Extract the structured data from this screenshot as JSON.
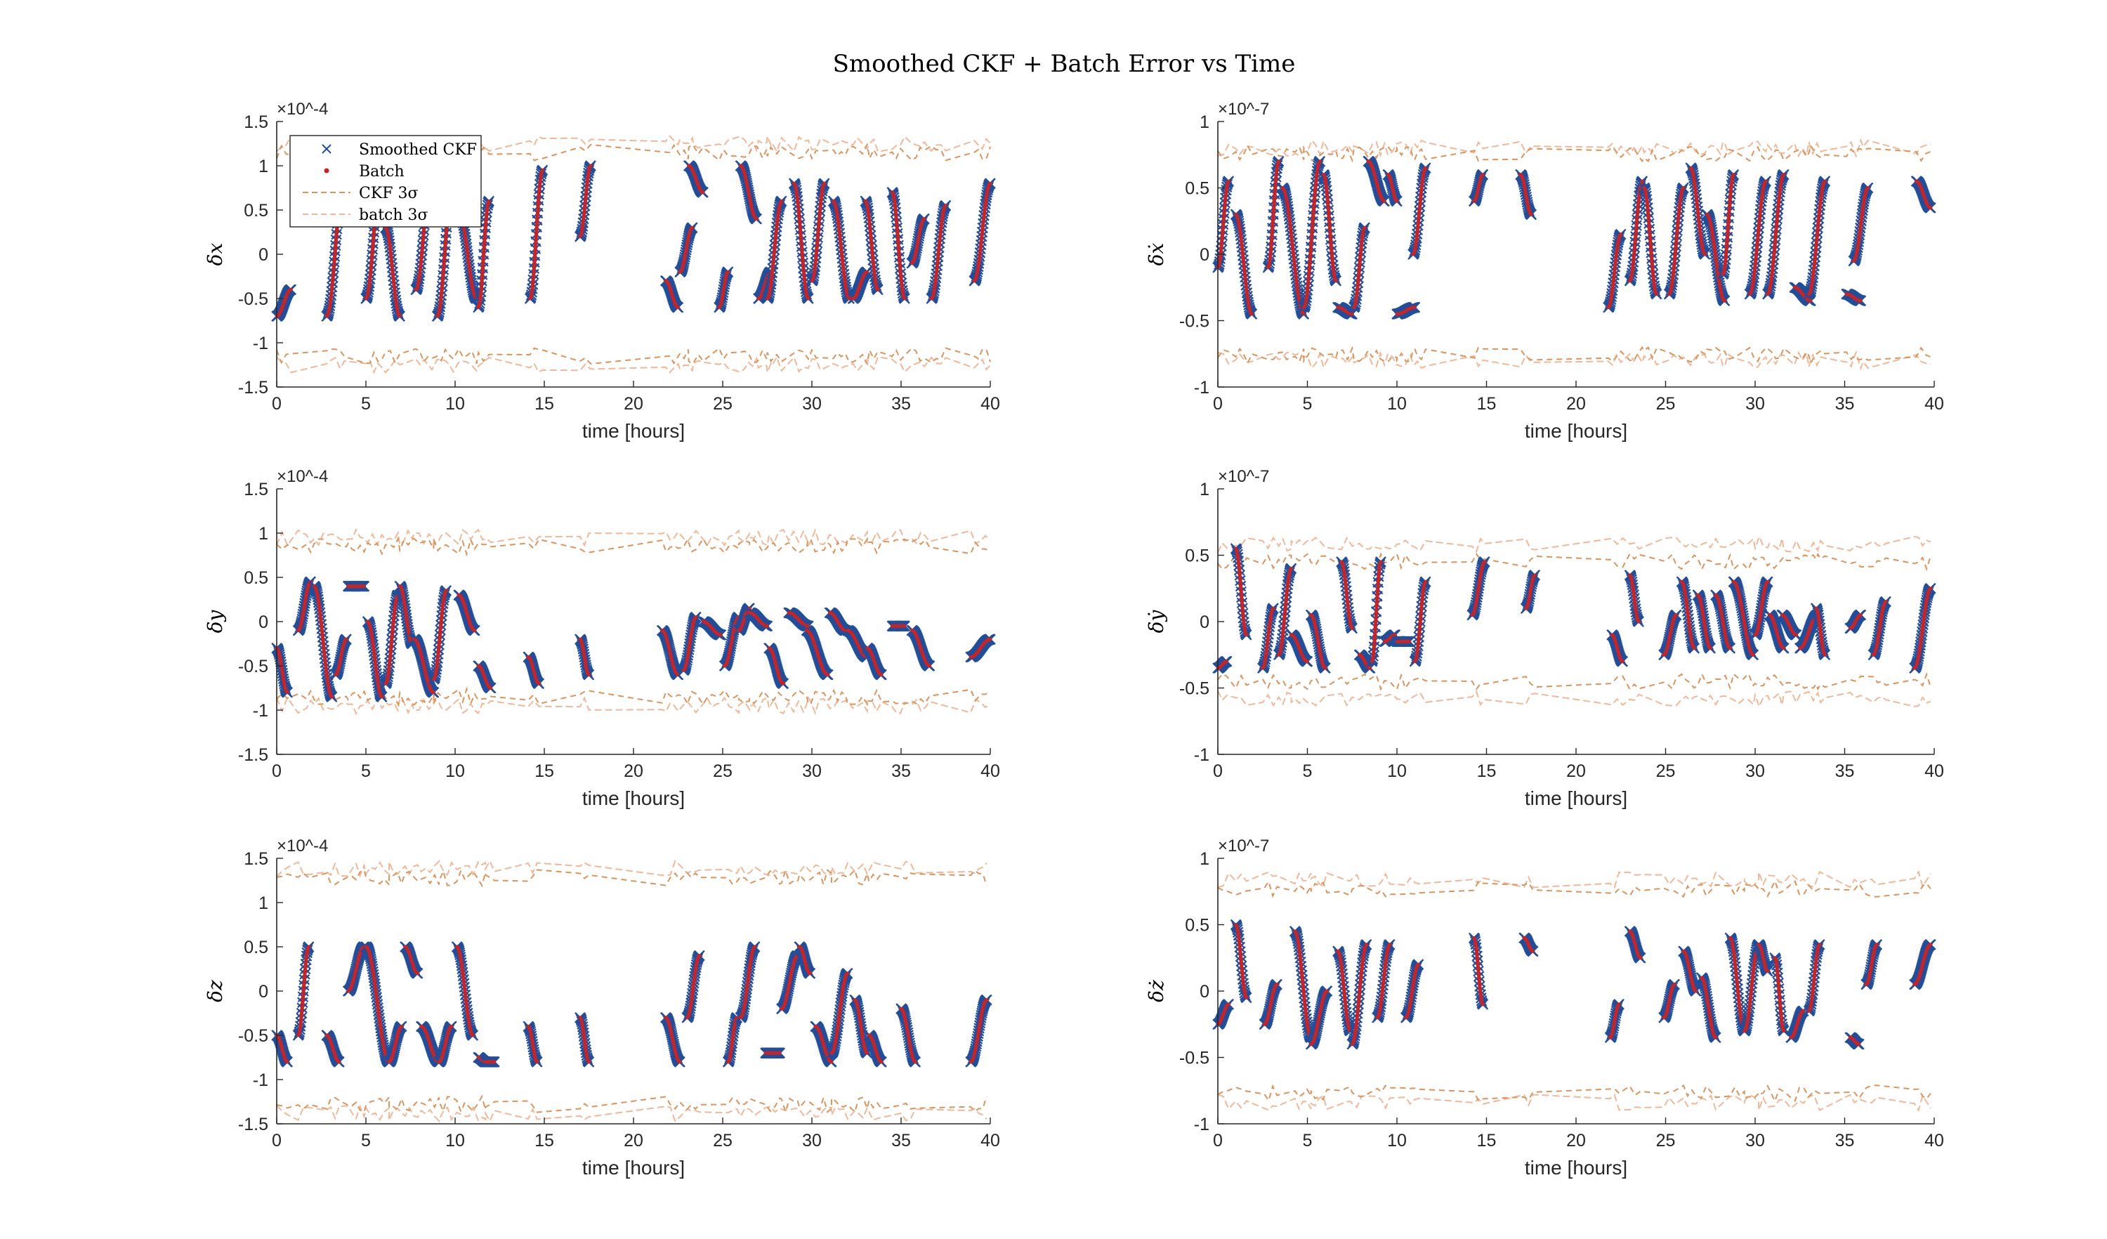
{
  "figure": {
    "title": "Smoothed CKF + Batch Error vs Time",
    "colors": {
      "ckf_marker": "#1f4e9c",
      "batch_marker": "#cc2222",
      "ckf_sigma": "#d9955c",
      "batch_sigma": "#f0b898",
      "axis": "#262626"
    }
  },
  "legend": {
    "placement": "top-left of first panel",
    "entries": [
      "Smoothed CKF",
      "Batch",
      "CKF 3σ",
      "batch 3σ"
    ]
  },
  "chart_data": [
    {
      "type": "scatter",
      "ylabel": "δx",
      "xlabel": "time [hours]",
      "exponent": "×10^-4",
      "xlim": [
        0,
        40
      ],
      "ylim": [
        -1.5,
        1.5
      ],
      "xticks": [
        "0",
        "5",
        "10",
        "15",
        "20",
        "25",
        "30",
        "35",
        "40"
      ],
      "yticks": [
        "-1.5",
        "-1",
        "-0.5",
        "0",
        "0.5",
        "1",
        "1.5"
      ],
      "sigma_ckf": 1.15,
      "sigma_batch": 1.25,
      "segments": [
        [
          0,
          0.8,
          -0.7,
          -0.4
        ],
        [
          2.8,
          3.8,
          -0.7,
          0.9
        ],
        [
          5,
          5.9,
          -0.5,
          1.0
        ],
        [
          6.1,
          6.9,
          0.3,
          -0.7
        ],
        [
          7.8,
          8.7,
          -0.4,
          0.95
        ],
        [
          9,
          9.9,
          -0.7,
          0.9
        ],
        [
          10.2,
          11.2,
          0.5,
          -0.5
        ],
        [
          11.3,
          11.9,
          -0.6,
          0.6
        ],
        [
          14.2,
          14.9,
          -0.5,
          0.95
        ],
        [
          17,
          17.6,
          0.2,
          1.0
        ],
        [
          21.8,
          22.5,
          -0.3,
          -0.6
        ],
        [
          22.6,
          23.3,
          -0.2,
          0.3
        ],
        [
          23.1,
          23.9,
          1.0,
          0.7
        ],
        [
          24.8,
          25.3,
          -0.6,
          -0.2
        ],
        [
          26,
          26.9,
          1.0,
          0.4
        ],
        [
          27,
          27.7,
          -0.5,
          -0.2
        ],
        [
          27.5,
          28.3,
          -0.5,
          0.6
        ],
        [
          29,
          29.8,
          0.8,
          -0.5
        ],
        [
          30,
          30.7,
          -0.3,
          0.8
        ],
        [
          31.2,
          32.1,
          0.6,
          -0.5
        ],
        [
          32.3,
          33.1,
          -0.5,
          -0.2
        ],
        [
          33,
          33.7,
          0.6,
          -0.4
        ],
        [
          34.5,
          35.2,
          0.7,
          -0.5
        ],
        [
          35.6,
          36.3,
          -0.1,
          0.4
        ],
        [
          36.7,
          37.5,
          -0.5,
          0.55
        ],
        [
          39.1,
          40,
          -0.3,
          0.8
        ]
      ]
    },
    {
      "type": "scatter",
      "ylabel": "δẋ",
      "xlabel": "time [hours]",
      "exponent": "×10^-7",
      "xlim": [
        0,
        40
      ],
      "ylim": [
        -1,
        1
      ],
      "xticks": [
        "0",
        "5",
        "10",
        "15",
        "20",
        "25",
        "30",
        "35",
        "40"
      ],
      "yticks": [
        "-1",
        "-0.5",
        "0",
        "0.5",
        "1"
      ],
      "sigma_ckf": 0.76,
      "sigma_batch": 0.8,
      "segments": [
        [
          0,
          0.6,
          -0.1,
          0.55
        ],
        [
          1,
          1.9,
          0.3,
          -0.45
        ],
        [
          2.8,
          3.4,
          -0.1,
          0.7
        ],
        [
          3.6,
          4.8,
          0.5,
          -0.45
        ],
        [
          4.8,
          5.7,
          -0.4,
          0.7
        ],
        [
          5.9,
          6.6,
          0.6,
          -0.2
        ],
        [
          6.7,
          7.5,
          -0.4,
          -0.45
        ],
        [
          7.6,
          8.2,
          -0.4,
          0.2
        ],
        [
          8.4,
          9.3,
          0.7,
          0.4
        ],
        [
          9.5,
          10,
          0.6,
          0.4
        ],
        [
          10,
          11,
          -0.45,
          -0.4
        ],
        [
          10.9,
          11.6,
          0.0,
          0.65
        ],
        [
          14.3,
          14.8,
          0.4,
          0.6
        ],
        [
          16.9,
          17.5,
          0.6,
          0.3
        ],
        [
          21.8,
          22.5,
          -0.4,
          0.15
        ],
        [
          23,
          23.7,
          -0.2,
          0.55
        ],
        [
          23.8,
          24.5,
          0.5,
          -0.3
        ],
        [
          25.2,
          26,
          -0.3,
          0.5
        ],
        [
          26.4,
          27.2,
          0.65,
          0.0
        ],
        [
          27.3,
          28.3,
          0.3,
          -0.35
        ],
        [
          28.2,
          28.8,
          -0.15,
          0.6
        ],
        [
          29.7,
          30.6,
          -0.3,
          0.55
        ],
        [
          30.7,
          31.6,
          -0.3,
          0.6
        ],
        [
          32.2,
          33.1,
          -0.25,
          -0.35
        ],
        [
          33,
          33.9,
          -0.3,
          0.55
        ],
        [
          35.1,
          35.9,
          -0.3,
          -0.35
        ],
        [
          35.5,
          36.3,
          -0.05,
          0.5
        ],
        [
          39,
          39.8,
          0.55,
          0.35
        ]
      ]
    },
    {
      "type": "scatter",
      "ylabel": "δy",
      "xlabel": "time [hours]",
      "exponent": "×10^-4",
      "xlim": [
        0,
        40
      ],
      "ylim": [
        -1.5,
        1.5
      ],
      "xticks": [
        "0",
        "5",
        "10",
        "15",
        "20",
        "25",
        "30",
        "35",
        "40"
      ],
      "yticks": [
        "-1.5",
        "-1",
        "-0.5",
        "0",
        "0.5",
        "1",
        "1.5"
      ],
      "sigma_ckf": 0.85,
      "sigma_batch": 0.95,
      "segments": [
        [
          0,
          0.6,
          -0.3,
          -0.8
        ],
        [
          1.2,
          1.9,
          -0.1,
          0.45
        ],
        [
          2.1,
          3.1,
          0.4,
          -0.85
        ],
        [
          3.3,
          3.9,
          -0.6,
          -0.2
        ],
        [
          4,
          4.9,
          0.4,
          0.4
        ],
        [
          5.1,
          5.9,
          0.0,
          -0.85
        ],
        [
          6.1,
          6.8,
          -0.7,
          0.3
        ],
        [
          6.9,
          7.6,
          0.4,
          -0.25
        ],
        [
          7.7,
          8.8,
          -0.2,
          -0.8
        ],
        [
          8.8,
          9.5,
          -0.65,
          0.35
        ],
        [
          10.2,
          11.1,
          0.3,
          -0.1
        ],
        [
          11.3,
          12,
          -0.5,
          -0.75
        ],
        [
          14.1,
          14.7,
          -0.4,
          -0.7
        ],
        [
          17,
          17.5,
          -0.2,
          -0.6
        ],
        [
          21.6,
          22.5,
          -0.1,
          -0.6
        ],
        [
          22.8,
          23.5,
          -0.55,
          0.05
        ],
        [
          23.9,
          24.9,
          0.0,
          -0.15
        ],
        [
          25.1,
          25.9,
          -0.5,
          0.05
        ],
        [
          25.9,
          26.5,
          -0.1,
          0.15
        ],
        [
          26.5,
          27.5,
          0.1,
          -0.05
        ],
        [
          27.6,
          28.4,
          -0.3,
          -0.7
        ],
        [
          28.7,
          29.8,
          0.1,
          -0.05
        ],
        [
          29.7,
          30.9,
          -0.1,
          -0.6
        ],
        [
          31,
          31.9,
          0.1,
          -0.1
        ],
        [
          32,
          33.1,
          -0.1,
          -0.4
        ],
        [
          33.1,
          33.9,
          -0.3,
          -0.6
        ],
        [
          34.5,
          35.2,
          -0.05,
          -0.05
        ],
        [
          35.6,
          36.6,
          -0.1,
          -0.5
        ],
        [
          38.9,
          40,
          -0.4,
          -0.2
        ]
      ]
    },
    {
      "type": "scatter",
      "ylabel": "δẏ",
      "xlabel": "time [hours]",
      "exponent": "×10^-7",
      "xlim": [
        0,
        40
      ],
      "ylim": [
        -1,
        1
      ],
      "xticks": [
        "0",
        "5",
        "10",
        "15",
        "20",
        "25",
        "30",
        "35",
        "40"
      ],
      "yticks": [
        "-1",
        "-0.5",
        "0",
        "0.5",
        "1"
      ],
      "sigma_ckf": 0.45,
      "sigma_batch": 0.58,
      "segments": [
        [
          0,
          0.5,
          -0.35,
          -0.3
        ],
        [
          1,
          1.6,
          0.55,
          -0.1
        ],
        [
          2.5,
          3.1,
          -0.35,
          0.1
        ],
        [
          3.4,
          4.1,
          -0.25,
          0.4
        ],
        [
          4.1,
          5,
          -0.1,
          -0.3
        ],
        [
          5.2,
          6,
          0.05,
          -0.35
        ],
        [
          6.9,
          7.5,
          0.45,
          -0.05
        ],
        [
          7.9,
          8.5,
          -0.25,
          -0.35
        ],
        [
          8.6,
          9.1,
          -0.3,
          0.45
        ],
        [
          9.3,
          9.9,
          -0.15,
          -0.1
        ],
        [
          10,
          10.7,
          -0.15,
          -0.15
        ],
        [
          11,
          11.6,
          -0.3,
          0.3
        ],
        [
          14.2,
          14.9,
          0.05,
          0.45
        ],
        [
          17.2,
          17.7,
          0.1,
          0.35
        ],
        [
          22,
          22.6,
          -0.1,
          -0.3
        ],
        [
          23,
          23.5,
          0.35,
          0.0
        ],
        [
          24.9,
          25.6,
          -0.25,
          0.05
        ],
        [
          25.9,
          26.6,
          0.3,
          -0.2
        ],
        [
          26.8,
          27.5,
          0.2,
          -0.2
        ],
        [
          27.8,
          28.6,
          0.2,
          -0.2
        ],
        [
          28.8,
          29.9,
          0.3,
          -0.25
        ],
        [
          30,
          30.7,
          -0.1,
          0.3
        ],
        [
          30.8,
          31.6,
          0.05,
          -0.2
        ],
        [
          31.5,
          32.3,
          0.05,
          -0.1
        ],
        [
          32.5,
          33.5,
          -0.2,
          0.05
        ],
        [
          33.4,
          33.9,
          0.1,
          -0.25
        ],
        [
          35.3,
          35.9,
          -0.05,
          0.05
        ],
        [
          36.6,
          37.3,
          -0.25,
          0.15
        ],
        [
          38.9,
          39.8,
          -0.35,
          0.25
        ]
      ]
    },
    {
      "type": "scatter",
      "ylabel": "δz",
      "xlabel": "time [hours]",
      "exponent": "×10^-4",
      "xlim": [
        0,
        40
      ],
      "ylim": [
        -1.5,
        1.5
      ],
      "xticks": [
        "0",
        "5",
        "10",
        "15",
        "20",
        "25",
        "30",
        "35",
        "40"
      ],
      "yticks": [
        "-1.5",
        "-1",
        "-0.5",
        "0",
        "0.5",
        "1",
        "1.5"
      ],
      "sigma_ckf": 1.28,
      "sigma_batch": 1.38,
      "segments": [
        [
          0,
          0.6,
          -0.5,
          -0.8
        ],
        [
          1.2,
          1.8,
          -0.5,
          0.5
        ],
        [
          2.8,
          3.5,
          -0.5,
          -0.8
        ],
        [
          4,
          4.9,
          0.0,
          0.5
        ],
        [
          5,
          6.3,
          0.5,
          -0.8
        ],
        [
          6.3,
          7,
          -0.8,
          -0.4
        ],
        [
          7.2,
          7.9,
          0.5,
          0.2
        ],
        [
          8.1,
          9.1,
          -0.4,
          -0.8
        ],
        [
          9.1,
          9.8,
          -0.8,
          -0.4
        ],
        [
          10.1,
          11,
          0.5,
          -0.5
        ],
        [
          11.3,
          11.7,
          -0.75,
          -0.8
        ],
        [
          11.7,
          12.2,
          -0.8,
          -0.8
        ],
        [
          14.1,
          14.6,
          -0.4,
          -0.8
        ],
        [
          17,
          17.5,
          -0.3,
          -0.8
        ],
        [
          21.8,
          22.6,
          -0.3,
          -0.8
        ],
        [
          23,
          23.7,
          -0.3,
          0.4
        ],
        [
          25.3,
          25.8,
          -0.8,
          -0.3
        ],
        [
          26,
          26.8,
          -0.3,
          0.5
        ],
        [
          27.4,
          28.2,
          -0.7,
          -0.7
        ],
        [
          28.3,
          29.2,
          -0.2,
          0.4
        ],
        [
          29.3,
          29.9,
          0.5,
          0.2
        ],
        [
          30.2,
          31.1,
          -0.4,
          -0.8
        ],
        [
          31.1,
          32,
          -0.7,
          0.2
        ],
        [
          32.4,
          33.1,
          -0.1,
          -0.7
        ],
        [
          33.2,
          33.9,
          -0.5,
          -0.8
        ],
        [
          35,
          35.8,
          -0.2,
          -0.8
        ],
        [
          38.9,
          39.8,
          -0.8,
          -0.1
        ]
      ]
    },
    {
      "type": "scatter",
      "ylabel": "δż",
      "xlabel": "time [hours]",
      "exponent": "×10^-7",
      "xlim": [
        0,
        40
      ],
      "ylim": [
        -1,
        1
      ],
      "xticks": [
        "0",
        "5",
        "10",
        "15",
        "20",
        "25",
        "30",
        "35",
        "40"
      ],
      "yticks": [
        "-1",
        "-0.5",
        "0",
        "0.5",
        "1"
      ],
      "sigma_ckf": 0.77,
      "sigma_batch": 0.84,
      "segments": [
        [
          0,
          0.6,
          -0.25,
          -0.1
        ],
        [
          1,
          1.6,
          0.5,
          -0.05
        ],
        [
          2.6,
          3.3,
          -0.25,
          0.05
        ],
        [
          4.3,
          5.2,
          0.45,
          -0.35
        ],
        [
          5.2,
          6.1,
          -0.4,
          0.0
        ],
        [
          6.7,
          7.4,
          0.3,
          -0.3
        ],
        [
          7.5,
          8.3,
          -0.4,
          0.35
        ],
        [
          8.9,
          9.6,
          -0.2,
          0.35
        ],
        [
          10.5,
          11.2,
          -0.2,
          0.2
        ],
        [
          14.3,
          14.8,
          0.4,
          -0.1
        ],
        [
          17.1,
          17.6,
          0.4,
          0.3
        ],
        [
          21.9,
          22.4,
          -0.35,
          -0.1
        ],
        [
          23,
          23.6,
          0.45,
          0.25
        ],
        [
          24.9,
          25.5,
          -0.2,
          0.05
        ],
        [
          26,
          26.7,
          0.3,
          0.0
        ],
        [
          27,
          27.8,
          0.1,
          -0.35
        ],
        [
          28.6,
          29.4,
          0.4,
          -0.3
        ],
        [
          29.4,
          30.2,
          -0.3,
          0.35
        ],
        [
          30.2,
          30.7,
          0.35,
          0.15
        ],
        [
          31.1,
          31.6,
          0.25,
          -0.3
        ],
        [
          32,
          32.7,
          -0.35,
          -0.15
        ],
        [
          33,
          33.6,
          -0.15,
          0.35
        ],
        [
          35.3,
          35.8,
          -0.35,
          -0.4
        ],
        [
          36.2,
          36.8,
          0.05,
          0.35
        ],
        [
          38.9,
          39.8,
          0.05,
          0.35
        ]
      ]
    }
  ]
}
